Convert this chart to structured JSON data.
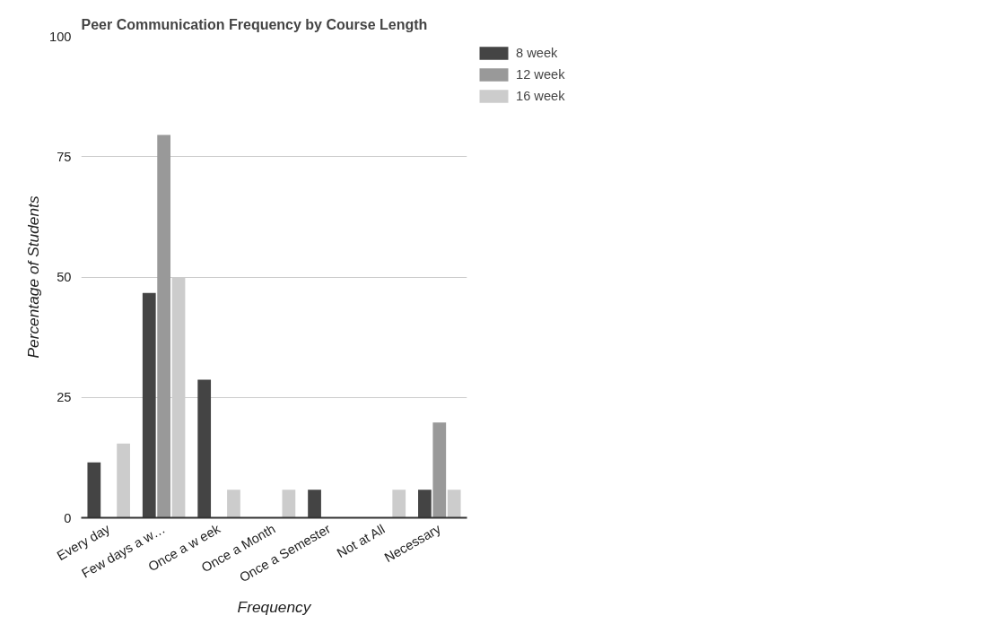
{
  "chart_data": {
    "type": "bar",
    "title": "Peer Communication Frequency by Course Length",
    "xlabel": "Frequency",
    "ylabel": "Percentage of Students",
    "categories": [
      "Every day",
      "Few days a w…",
      "Once a w eek",
      "Once a Month",
      "Once a Semester",
      "Not at All",
      "Necessary"
    ],
    "series": [
      {
        "name": "8 week",
        "color": "#444444",
        "values": [
          11.5,
          46.7,
          28.7,
          0,
          5.8,
          0,
          5.8
        ]
      },
      {
        "name": "12 week",
        "color": "#999999",
        "values": [
          0,
          79.5,
          0,
          0,
          0,
          0,
          19.8
        ]
      },
      {
        "name": "16 week",
        "color": "#cccccc",
        "values": [
          15.4,
          50,
          5.8,
          5.8,
          0,
          5.8,
          5.8
        ]
      }
    ],
    "ylim": [
      0,
      100
    ],
    "yticks": [
      0,
      25,
      50,
      75,
      100
    ],
    "grid": "y",
    "legend": "top right"
  }
}
